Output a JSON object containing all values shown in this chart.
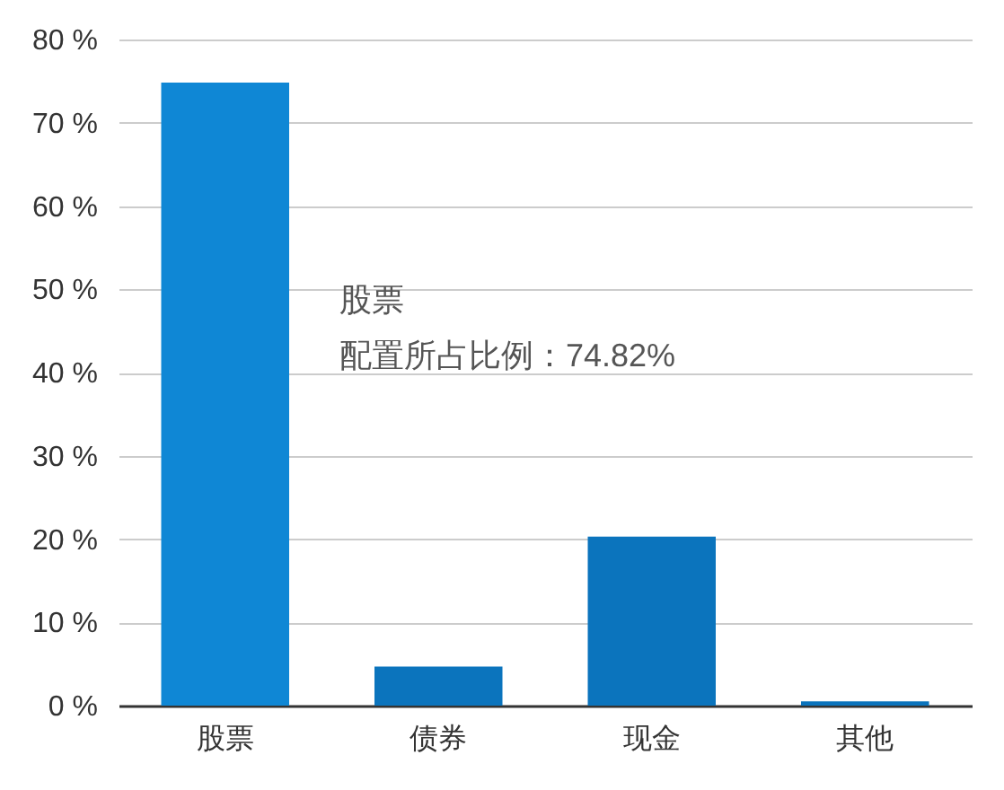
{
  "chart_data": {
    "type": "bar",
    "categories": [
      "股票",
      "债券",
      "现金",
      "其他"
    ],
    "values": [
      74.82,
      4.7,
      20.3,
      0.5
    ],
    "colors": [
      "#0f87d5",
      "#0b74bd",
      "#0b74bd",
      "#0b74bd"
    ],
    "ylim": [
      0,
      80
    ],
    "yticks": [
      {
        "value": 0,
        "label": "0 %"
      },
      {
        "value": 10,
        "label": "10 %"
      },
      {
        "value": 20,
        "label": "20 %"
      },
      {
        "value": 30,
        "label": "30 %"
      },
      {
        "value": 40,
        "label": "40 %"
      },
      {
        "value": 50,
        "label": "50 %"
      },
      {
        "value": 60,
        "label": "60 %"
      },
      {
        "value": 70,
        "label": "70 %"
      },
      {
        "value": 80,
        "label": "80 %"
      }
    ],
    "grid": "y",
    "annotations": [
      "股票",
      "配置所占比例：74.82%"
    ]
  }
}
